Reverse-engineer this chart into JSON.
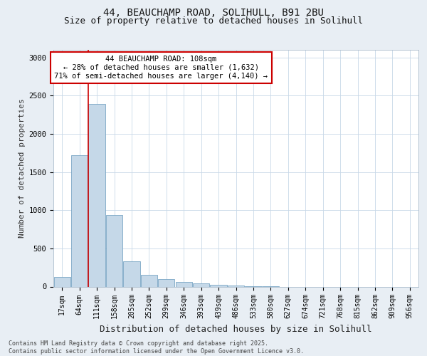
{
  "title_line1": "44, BEAUCHAMP ROAD, SOLIHULL, B91 2BU",
  "title_line2": "Size of property relative to detached houses in Solihull",
  "xlabel": "Distribution of detached houses by size in Solihull",
  "ylabel": "Number of detached properties",
  "categories": [
    "17sqm",
    "64sqm",
    "111sqm",
    "158sqm",
    "205sqm",
    "252sqm",
    "299sqm",
    "346sqm",
    "393sqm",
    "439sqm",
    "486sqm",
    "533sqm",
    "580sqm",
    "627sqm",
    "674sqm",
    "721sqm",
    "768sqm",
    "815sqm",
    "862sqm",
    "909sqm",
    "956sqm"
  ],
  "values": [
    130,
    1720,
    2390,
    940,
    330,
    155,
    100,
    60,
    40,
    20,
    15,
    5,
    5,
    0,
    0,
    0,
    0,
    0,
    0,
    0,
    0
  ],
  "bar_color": "#c5d8e8",
  "bar_edge_color": "#6699bb",
  "vline_color": "#cc0000",
  "vline_pos": 1.52,
  "annotation_text": "44 BEAUCHAMP ROAD: 108sqm\n← 28% of detached houses are smaller (1,632)\n71% of semi-detached houses are larger (4,140) →",
  "annotation_box_color": "#ffffff",
  "annotation_box_edge": "#cc0000",
  "ylim": [
    0,
    3100
  ],
  "yticks": [
    0,
    500,
    1000,
    1500,
    2000,
    2500,
    3000
  ],
  "footer": "Contains HM Land Registry data © Crown copyright and database right 2025.\nContains public sector information licensed under the Open Government Licence v3.0.",
  "bg_color": "#e8eef4",
  "plot_bg_color": "#ffffff",
  "grid_color": "#c8d8e8",
  "title_fontsize": 10,
  "subtitle_fontsize": 9,
  "ylabel_fontsize": 8,
  "xlabel_fontsize": 9,
  "tick_fontsize": 7.5,
  "ann_fontsize": 7.5,
  "footer_fontsize": 6
}
